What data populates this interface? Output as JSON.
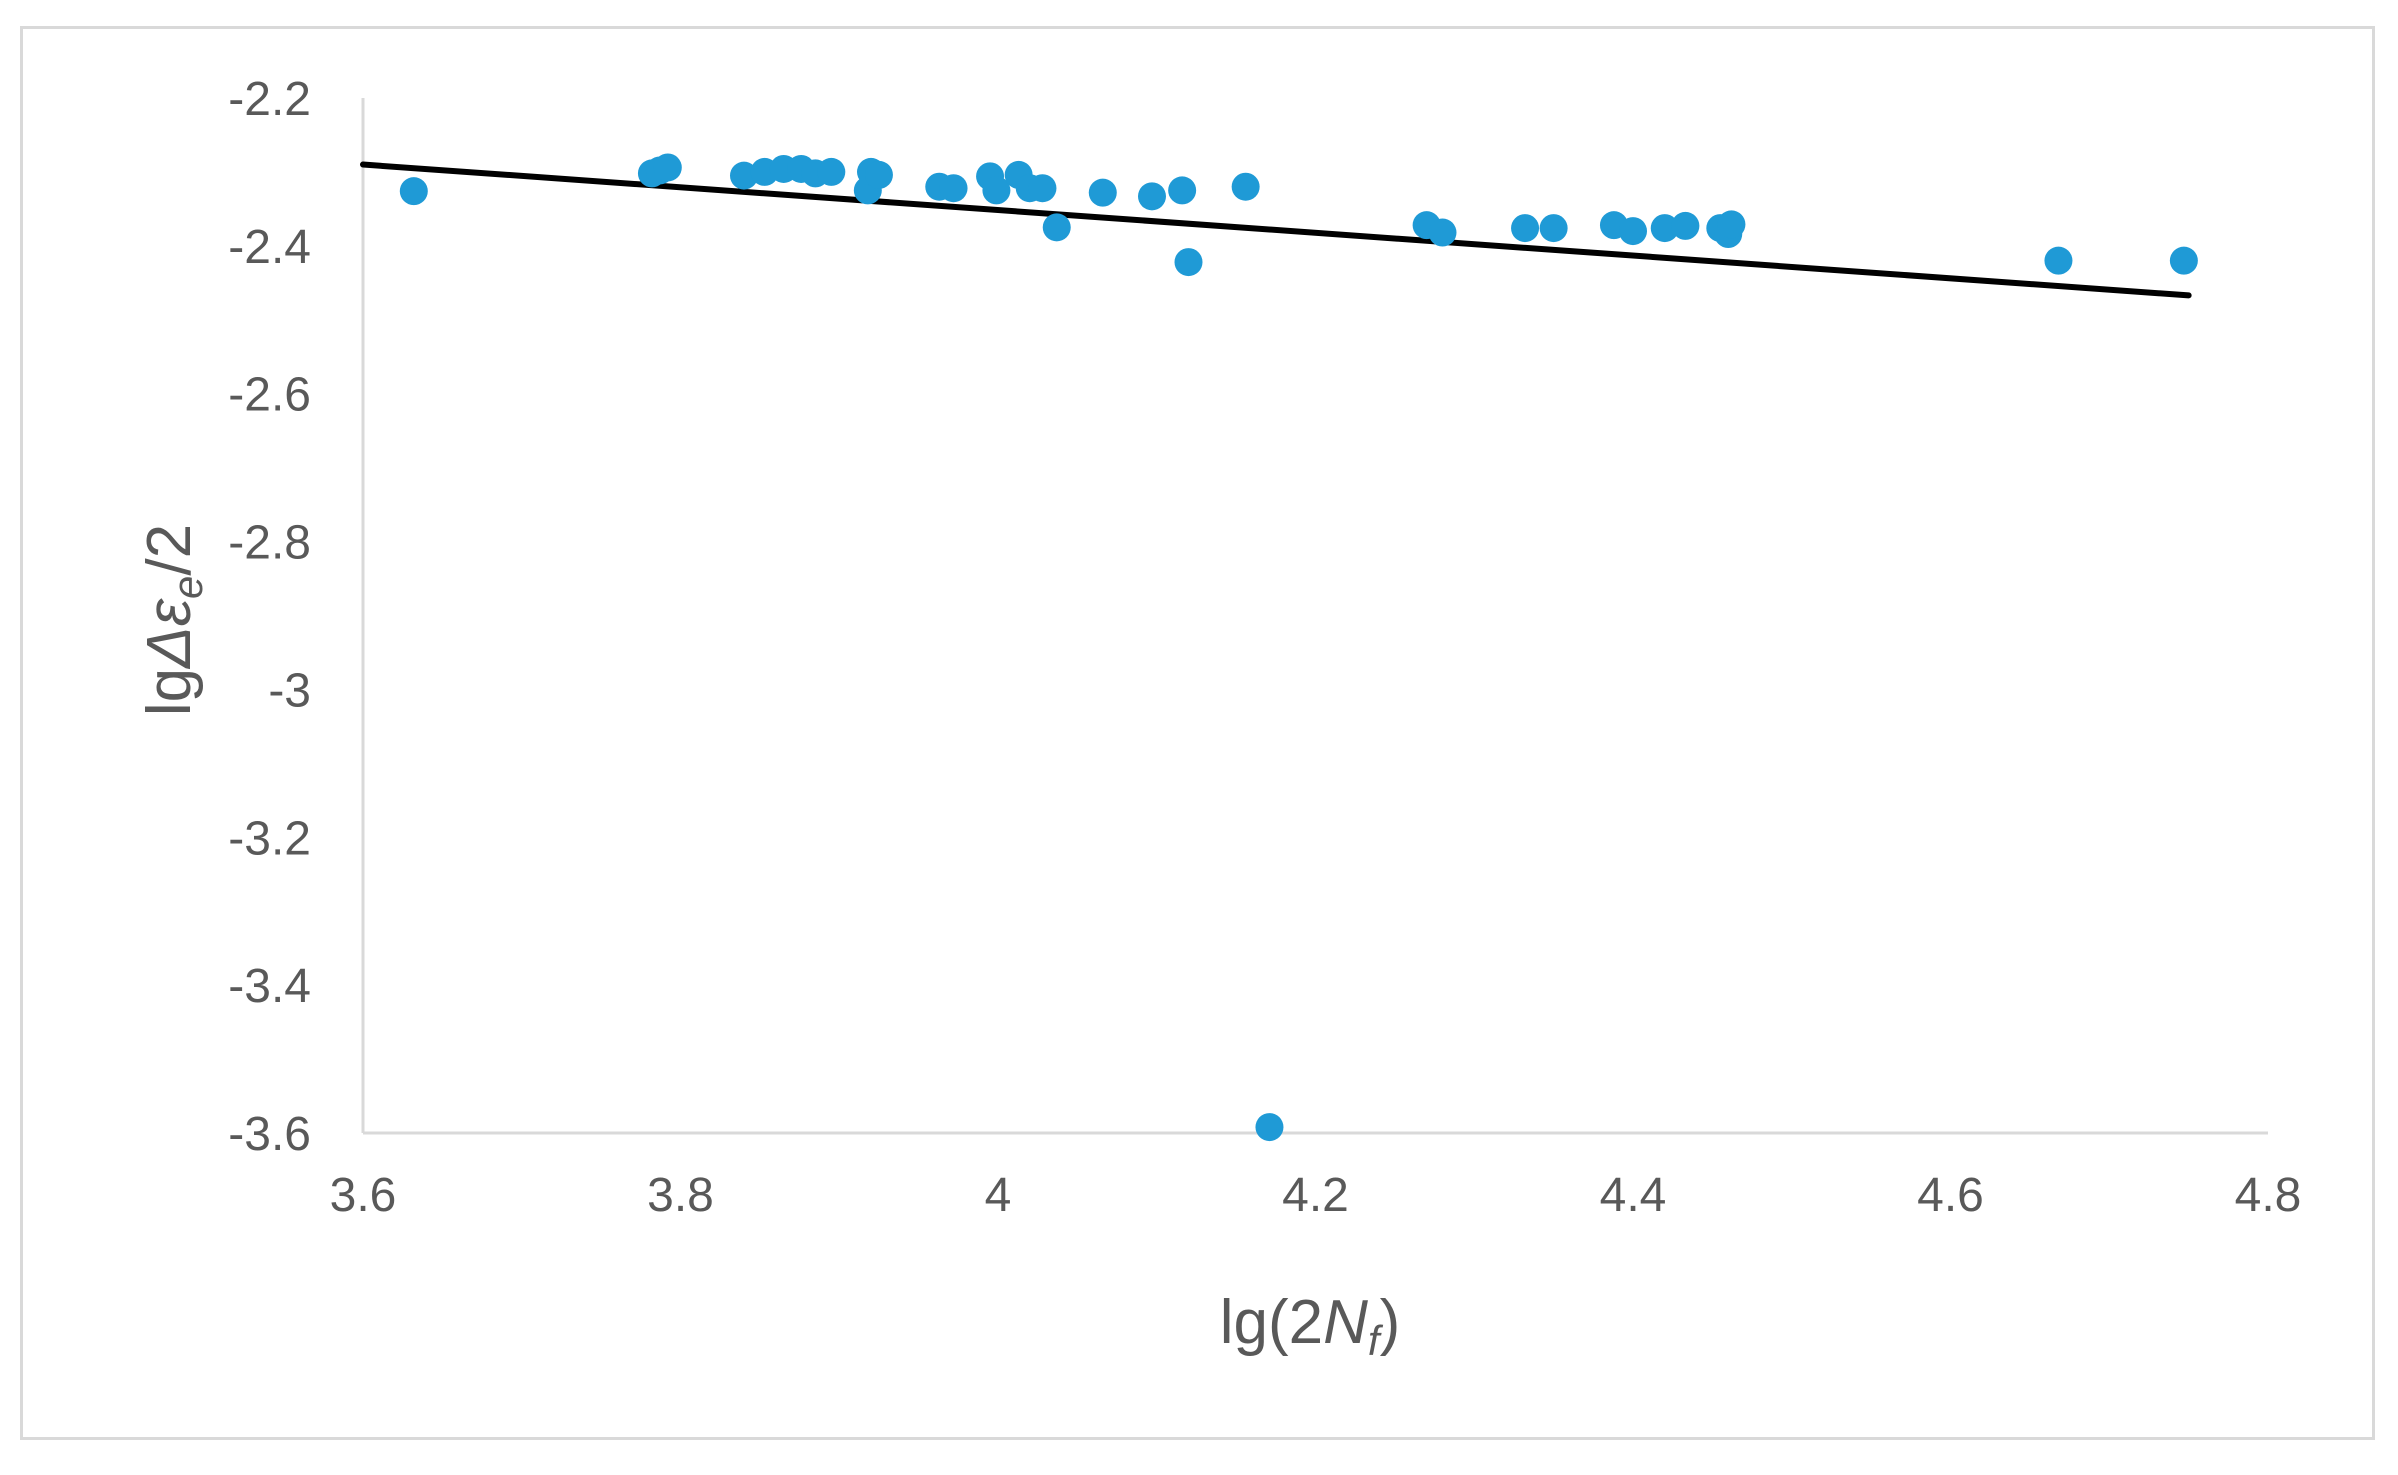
{
  "chart_data": {
    "type": "scatter",
    "xlabel": {
      "pre": "lg(2",
      "main": "N",
      "sub": "f",
      "post": ")"
    },
    "ylabel": {
      "pre": "lg",
      "main": "Δε",
      "sub": "e",
      "post": "/2"
    },
    "xlim": [
      3.6,
      4.8
    ],
    "ylim": [
      -3.6,
      -2.2
    ],
    "xticks": [
      3.6,
      3.8,
      4.0,
      4.2,
      4.4,
      4.6,
      4.8
    ],
    "xtick_labels": [
      "3.6",
      "3.8",
      "4",
      "4.2",
      "4.4",
      "4.6",
      "4.8"
    ],
    "yticks": [
      -2.2,
      -2.4,
      -2.6,
      -2.8,
      -3.0,
      -3.2,
      -3.4,
      -3.6
    ],
    "ytick_labels": [
      "-2.2",
      "-2.4",
      "-2.6",
      "-2.8",
      "-3",
      "-3.2",
      "-3.4",
      "-3.6"
    ],
    "grid": false,
    "point_color": "#1f9ad6",
    "line_color": "#000000",
    "series": [
      {
        "x": [
          3.632,
          3.782,
          3.787,
          3.792,
          3.84,
          3.853,
          3.865,
          3.876,
          3.885,
          3.895,
          3.918,
          3.92,
          3.925,
          3.963,
          3.972,
          3.995,
          3.999,
          4.013,
          4.02,
          4.028,
          4.037,
          4.066,
          4.097,
          4.116,
          4.12,
          4.156,
          4.171,
          4.27,
          4.28,
          4.332,
          4.35,
          4.388,
          4.4,
          4.42,
          4.433,
          4.455,
          4.46,
          4.462,
          4.668,
          4.747
        ],
        "y": [
          -2.326,
          -2.302,
          -2.298,
          -2.294,
          -2.305,
          -2.3,
          -2.296,
          -2.296,
          -2.302,
          -2.3,
          -2.325,
          -2.3,
          -2.304,
          -2.32,
          -2.322,
          -2.306,
          -2.325,
          -2.304,
          -2.322,
          -2.322,
          -2.375,
          -2.328,
          -2.333,
          -2.325,
          -2.422,
          -2.32,
          -3.592,
          -2.372,
          -2.382,
          -2.376,
          -2.376,
          -2.372,
          -2.38,
          -2.376,
          -2.373,
          -2.376,
          -2.384,
          -2.371,
          -2.42,
          -2.42
        ]
      }
    ],
    "trendline": {
      "x": [
        3.6,
        4.75
      ],
      "y": [
        -2.29,
        -2.467
      ]
    }
  }
}
